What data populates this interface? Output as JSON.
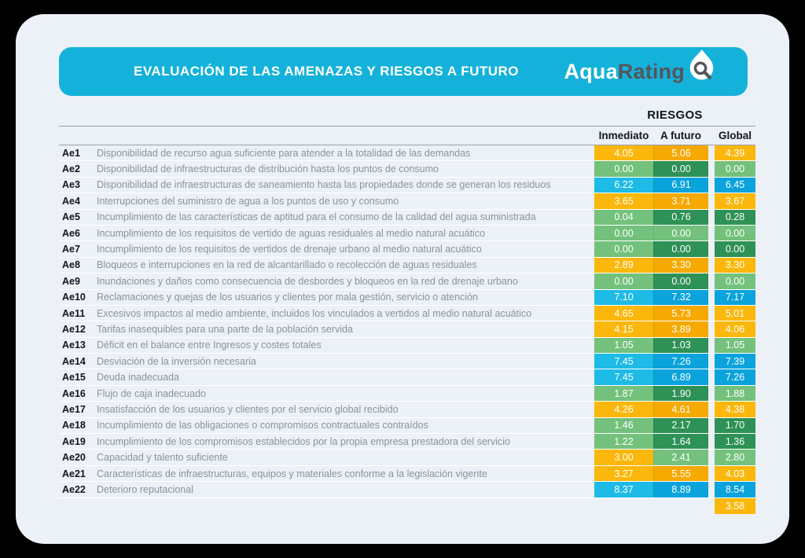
{
  "header": {
    "title": "EVALUACIÓN DE LAS AMENAZAS Y RIESGOS A FUTURO",
    "logo": {
      "aqua": "Aqua",
      "rating": "Rating"
    }
  },
  "palette": {
    "orange_light": "#FBB70B",
    "orange_dark": "#F6A901",
    "green_light": "#73C17C",
    "green_dark": "#2E9156",
    "blue_light": "#1DBBE5",
    "blue_dark": "#0AA3DC",
    "header_bar": "#14B2DA",
    "card_bg": "#ECF1F8"
  },
  "chart_data": {
    "type": "table",
    "title": "EVALUACIÓN DE LAS AMENAZAS Y RIESGOS A FUTURO",
    "group_header": "RIESGOS",
    "columns": [
      "Inmediato",
      "A futuro",
      "Global"
    ],
    "value_range": [
      0,
      10
    ],
    "rows": [
      {
        "id": "Ae1",
        "label": "Disponibilidad de recurso agua suficiente para atender a la totalidad de las demandas",
        "values": [
          4.05,
          5.06,
          4.39
        ],
        "colors": [
          "orange_light",
          "orange_dark",
          "orange_light"
        ]
      },
      {
        "id": "Ae2",
        "label": "Disponibilidad de infraestructuras de distribución hasta los puntos de consumo",
        "values": [
          0.0,
          0.0,
          0.0
        ],
        "colors": [
          "green_light",
          "green_dark",
          "green_light"
        ]
      },
      {
        "id": "Ae3",
        "label": "Disponibilidad de infraestructuras de saneamiento hasta las propiedades donde se generan los residuos",
        "values": [
          6.22,
          6.91,
          6.45
        ],
        "colors": [
          "blue_light",
          "blue_dark",
          "blue_dark"
        ]
      },
      {
        "id": "Ae4",
        "label": "Interrupciones del suministro de agua a los puntos de uso y consumo",
        "values": [
          3.65,
          3.71,
          3.67
        ],
        "colors": [
          "orange_light",
          "orange_dark",
          "orange_light"
        ]
      },
      {
        "id": "Ae5",
        "label": "Incumplimiento de las características de aptitud para el consumo de la calidad del agua suministrada",
        "values": [
          0.04,
          0.76,
          0.28
        ],
        "colors": [
          "green_light",
          "green_dark",
          "green_dark"
        ]
      },
      {
        "id": "Ae6",
        "label": "Incumplimiento de los requisitos de vertido de aguas residuales al medio natural acuático",
        "values": [
          0.0,
          0.0,
          0.0
        ],
        "colors": [
          "green_light",
          "green_light",
          "green_light"
        ]
      },
      {
        "id": "Ae7",
        "label": "Incumplimiento de los requisitos de vertidos de drenaje urbano al medio natural acuático",
        "values": [
          0.0,
          0.0,
          0.0
        ],
        "colors": [
          "green_light",
          "green_dark",
          "green_dark"
        ]
      },
      {
        "id": "Ae8",
        "label": "Bloqueos e interrupciones en la red de alcantarillado o recolección de aguas residuales",
        "values": [
          2.89,
          3.3,
          3.3
        ],
        "colors": [
          "orange_light",
          "orange_dark",
          "orange_light"
        ]
      },
      {
        "id": "Ae9",
        "label": "Inundaciones y daños como consecuencia de desbordes y bloqueos en la red de drenaje urbano",
        "values": [
          0.0,
          0.0,
          0.0
        ],
        "colors": [
          "green_light",
          "green_dark",
          "green_light"
        ]
      },
      {
        "id": "Ae10",
        "label": "Reclamaciones y quejas de los usuarios y clientes por mala gestión, servicio o atención",
        "values": [
          7.1,
          7.32,
          7.17
        ],
        "colors": [
          "blue_light",
          "blue_dark",
          "blue_dark"
        ]
      },
      {
        "id": "Ae11",
        "label": "Excesivos impactos al medio ambiente, incluidos los vinculados a vertidos al medio natural acuático",
        "values": [
          4.65,
          5.73,
          5.01
        ],
        "colors": [
          "orange_light",
          "orange_dark",
          "orange_light"
        ]
      },
      {
        "id": "Ae12",
        "label": "Tarifas inasequibles para una parte de la población servida",
        "values": [
          4.15,
          3.89,
          4.06
        ],
        "colors": [
          "orange_light",
          "orange_dark",
          "orange_light"
        ]
      },
      {
        "id": "Ae13",
        "label": "Déficit en el balance entre Ingresos y costes totales",
        "values": [
          1.05,
          1.03,
          1.05
        ],
        "colors": [
          "green_light",
          "green_dark",
          "green_light"
        ]
      },
      {
        "id": "Ae14",
        "label": "Desviación de la inversión necesaria",
        "values": [
          7.45,
          7.26,
          7.39
        ],
        "colors": [
          "blue_light",
          "blue_dark",
          "blue_dark"
        ]
      },
      {
        "id": "Ae15",
        "label": "Deuda inadecuada",
        "values": [
          7.45,
          6.89,
          7.26
        ],
        "colors": [
          "blue_light",
          "blue_dark",
          "blue_dark"
        ]
      },
      {
        "id": "Ae16",
        "label": "Flujo de caja inadecuado",
        "values": [
          1.87,
          1.9,
          1.88
        ],
        "colors": [
          "green_light",
          "green_dark",
          "green_light"
        ]
      },
      {
        "id": "Ae17",
        "label": "Insatisfacción de los usuarios y clientes por el servicio global recibido",
        "values": [
          4.26,
          4.61,
          4.38
        ],
        "colors": [
          "orange_light",
          "orange_dark",
          "orange_light"
        ]
      },
      {
        "id": "Ae18",
        "label": "Incumplimiento de las obligaciones o compromisos contractuales contraídos",
        "values": [
          1.46,
          2.17,
          1.7
        ],
        "colors": [
          "green_light",
          "green_dark",
          "green_dark"
        ]
      },
      {
        "id": "Ae19",
        "label": "Incumplimiento de los compromisos establecidos por la propia empresa prestadora del servicio",
        "values": [
          1.22,
          1.64,
          1.36
        ],
        "colors": [
          "green_light",
          "green_dark",
          "green_dark"
        ]
      },
      {
        "id": "Ae20",
        "label": "Capacidad y talento suficiente",
        "values": [
          3.0,
          2.41,
          2.8
        ],
        "colors": [
          "orange_light",
          "green_light",
          "green_light"
        ]
      },
      {
        "id": "Ae21",
        "label": "Características de infraestructuras, equipos y materiales conforme a la legislación vigente",
        "values": [
          3.27,
          5.55,
          4.03
        ],
        "colors": [
          "orange_light",
          "orange_dark",
          "orange_light"
        ]
      },
      {
        "id": "Ae22",
        "label": "Deterioro reputacional",
        "values": [
          8.37,
          8.89,
          8.54
        ],
        "colors": [
          "blue_light",
          "blue_dark",
          "blue_dark"
        ]
      }
    ],
    "footer": {
      "global_value": 3.58,
      "color": "orange_light"
    }
  }
}
